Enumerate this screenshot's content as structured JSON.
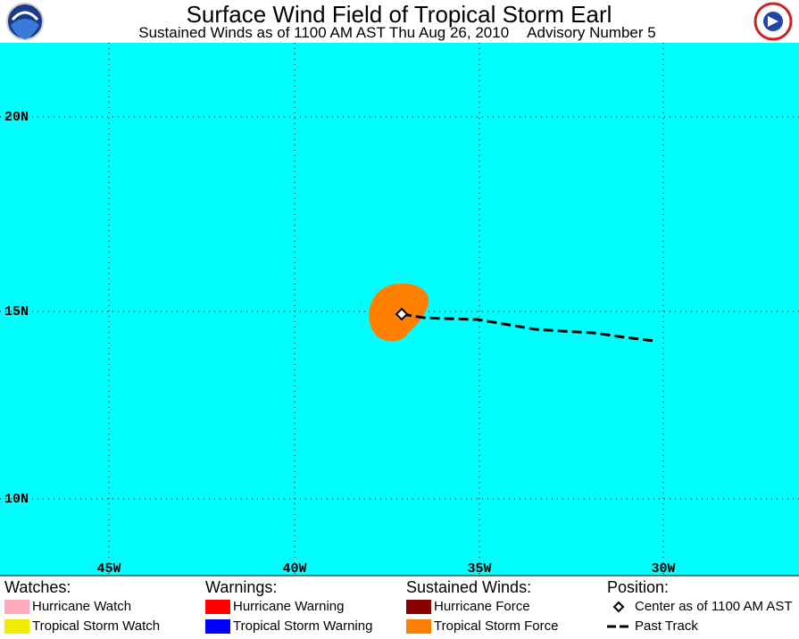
{
  "header": {
    "title": "Surface Wind Field of Tropical Storm Earl",
    "subtitle": "Sustained Winds as of 1100 AM AST Thu Aug 26, 2010",
    "advisory": "Advisory Number 5"
  },
  "map": {
    "lat_labels": [
      "20N",
      "15N",
      "10N"
    ],
    "lon_labels": [
      "45W",
      "40W",
      "35W",
      "30W"
    ]
  },
  "legend": {
    "watches": {
      "title": "Watches:",
      "items": [
        {
          "label": "Hurricane Watch",
          "color": "#ffaabb"
        },
        {
          "label": "Tropical Storm Watch",
          "color": "#eeee00"
        }
      ]
    },
    "warnings": {
      "title": "Warnings:",
      "items": [
        {
          "label": "Hurricane Warning",
          "color": "#ff0000"
        },
        {
          "label": "Tropical Storm Warning",
          "color": "#0000ff"
        }
      ]
    },
    "winds": {
      "title": "Sustained Winds:",
      "items": [
        {
          "label": "Hurricane Force",
          "color": "#880000"
        },
        {
          "label": "Tropical Storm Force",
          "color": "#ff8000"
        }
      ]
    },
    "position": {
      "title": "Position:",
      "items": [
        {
          "label": "Center as of 1100 AM AST"
        },
        {
          "label": "Past Track"
        }
      ]
    }
  }
}
